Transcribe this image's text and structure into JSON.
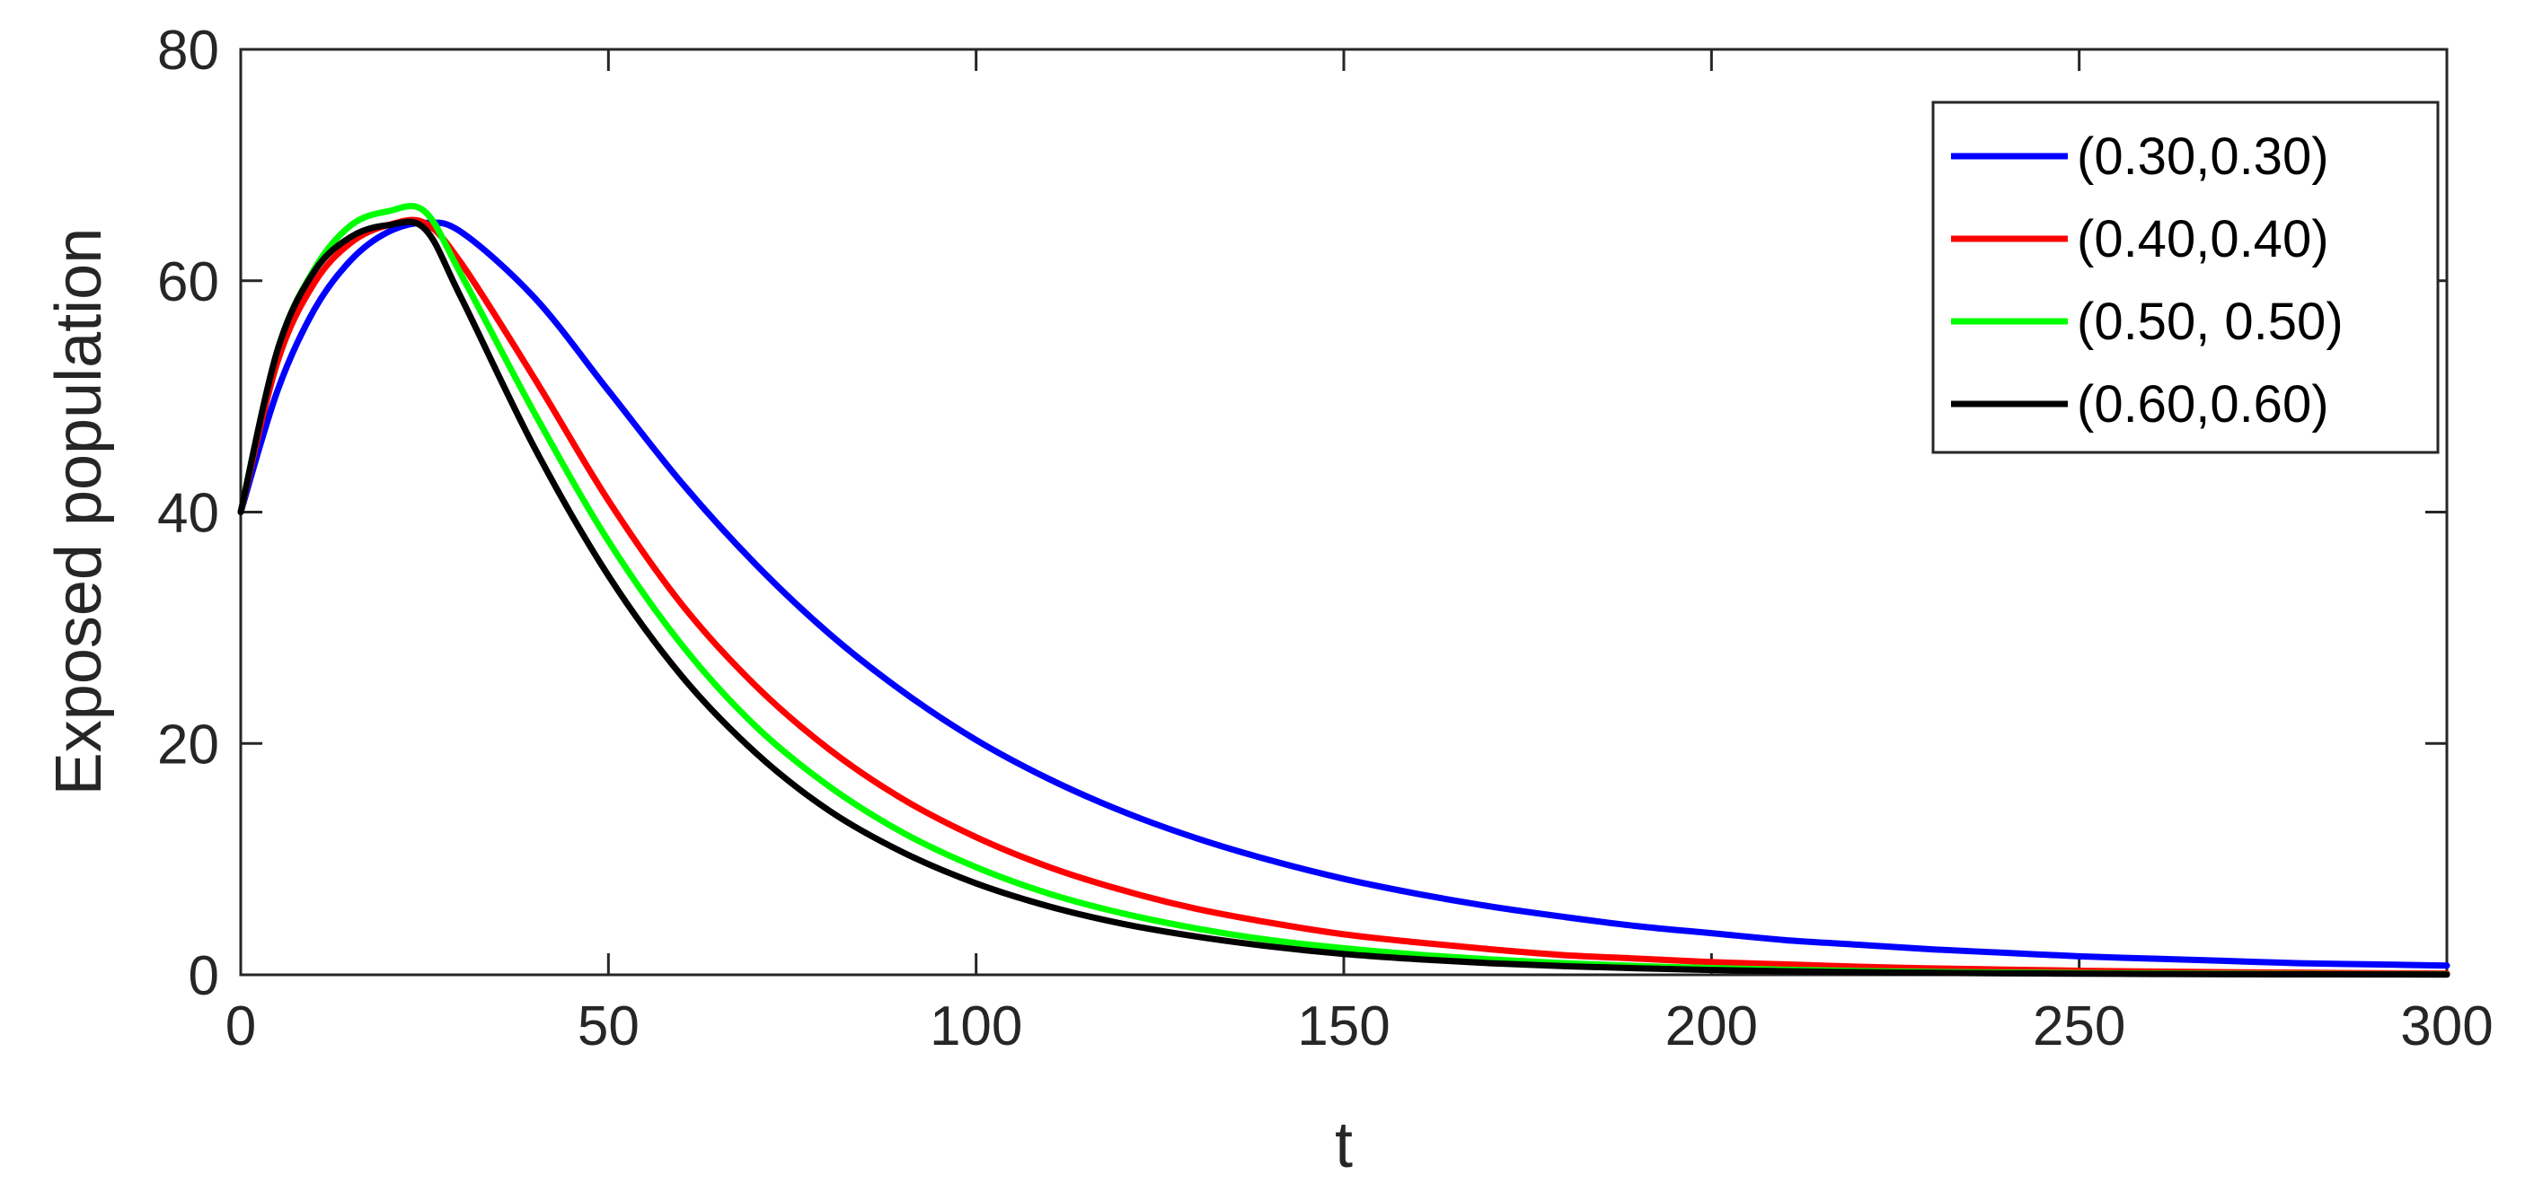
{
  "chart_data": {
    "type": "line",
    "title": "",
    "xlabel": "t",
    "ylabel": "Exposed population",
    "xlim": [
      0,
      300
    ],
    "ylim": [
      0,
      80
    ],
    "xticks": [
      0,
      50,
      100,
      150,
      200,
      250,
      300
    ],
    "yticks": [
      0,
      20,
      40,
      60,
      80
    ],
    "grid": false,
    "legend_position": "top-right",
    "series": [
      {
        "name": "(0.30,0.30)",
        "color": "#0000ff",
        "x": [
          0,
          5,
          10,
          15,
          20,
          25,
          30,
          40,
          50,
          60,
          70,
          80,
          90,
          100,
          110,
          120,
          130,
          140,
          150,
          160,
          170,
          180,
          190,
          200,
          210,
          220,
          230,
          240,
          250,
          260,
          270,
          280,
          290,
          300
        ],
        "y": [
          40,
          50.5,
          57.5,
          61.8,
          64.2,
          65.0,
          64.2,
          58.5,
          50.5,
          42.5,
          35.5,
          29.5,
          24.5,
          20.3,
          16.9,
          14.1,
          11.8,
          9.9,
          8.3,
          7.0,
          5.9,
          5.0,
          4.2,
          3.6,
          3.0,
          2.6,
          2.2,
          1.9,
          1.6,
          1.4,
          1.2,
          1.0,
          0.9,
          0.8
        ]
      },
      {
        "name": "(0.40,0.40)",
        "color": "#ff0000",
        "x": [
          0,
          5,
          10,
          15,
          20,
          25,
          30,
          40,
          50,
          60,
          70,
          80,
          90,
          100,
          110,
          120,
          130,
          140,
          150,
          160,
          170,
          180,
          190,
          200,
          210,
          220,
          230,
          240,
          250,
          260,
          270,
          280,
          290,
          300
        ],
        "y": [
          40,
          53.0,
          59.8,
          63.3,
          64.8,
          65.0,
          61.5,
          51.5,
          41.0,
          32.0,
          25.0,
          19.5,
          15.2,
          11.9,
          9.3,
          7.3,
          5.7,
          4.5,
          3.5,
          2.8,
          2.2,
          1.7,
          1.4,
          1.1,
          0.9,
          0.7,
          0.55,
          0.45,
          0.35,
          0.28,
          0.22,
          0.18,
          0.14,
          0.11
        ]
      },
      {
        "name": "(0.50, 0.50)",
        "color": "#00ff00",
        "x": [
          0,
          5,
          10,
          15,
          20,
          25,
          30,
          40,
          50,
          60,
          70,
          80,
          90,
          100,
          110,
          120,
          130,
          140,
          150,
          160,
          170,
          180,
          190,
          200,
          210,
          220,
          230,
          240,
          250,
          260,
          270,
          280,
          290,
          300
        ],
        "y": [
          40,
          54.0,
          61.0,
          64.8,
          66.0,
          66.0,
          60.5,
          48.5,
          37.5,
          28.5,
          21.5,
          16.3,
          12.3,
          9.3,
          7.0,
          5.3,
          4.0,
          3.0,
          2.3,
          1.75,
          1.33,
          1.0,
          0.76,
          0.58,
          0.44,
          0.33,
          0.25,
          0.19,
          0.15,
          0.11,
          0.09,
          0.07,
          0.05,
          0.04
        ]
      },
      {
        "name": "(0.60,0.60)",
        "color": "#000000",
        "x": [
          0,
          5,
          10,
          15,
          20,
          25,
          30,
          40,
          50,
          60,
          70,
          80,
          90,
          100,
          110,
          120,
          130,
          140,
          150,
          160,
          170,
          180,
          190,
          200,
          210,
          220,
          230,
          240,
          250,
          260,
          270,
          280,
          290,
          300
        ],
        "y": [
          40,
          54.0,
          60.8,
          63.8,
          64.8,
          64.5,
          58.5,
          45.5,
          34.5,
          25.8,
          19.2,
          14.2,
          10.6,
          7.9,
          5.9,
          4.4,
          3.3,
          2.45,
          1.8,
          1.35,
          1.0,
          0.75,
          0.56,
          0.42,
          0.31,
          0.23,
          0.17,
          0.13,
          0.1,
          0.07,
          0.05,
          0.04,
          0.03,
          0.02
        ]
      }
    ]
  }
}
